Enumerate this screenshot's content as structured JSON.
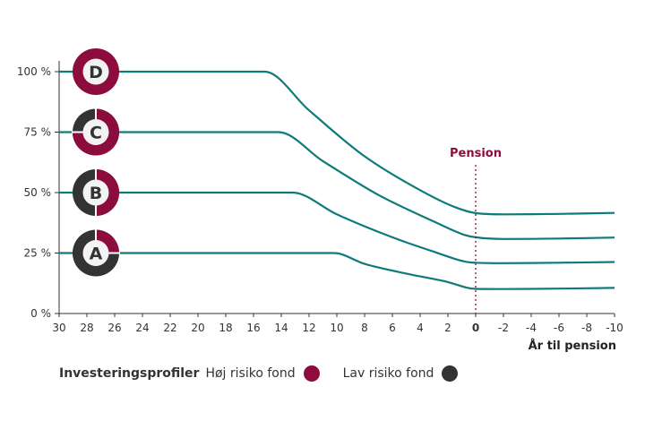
{
  "chart_data": {
    "type": "line",
    "xlabel": "År til pension",
    "ylabel": "",
    "x_ticks": [
      30,
      28,
      26,
      24,
      22,
      20,
      18,
      16,
      14,
      12,
      10,
      8,
      6,
      4,
      2,
      0,
      -2,
      -4,
      -6,
      -8,
      -10
    ],
    "x_tick_labels": [
      "30",
      "28",
      "26",
      "24",
      "22",
      "20",
      "18",
      "16",
      "14",
      "12",
      "10",
      "8",
      "6",
      "4",
      "2",
      "0",
      "-2",
      "-4",
      "-6",
      "-8",
      "-10"
    ],
    "xlim": [
      30,
      -10
    ],
    "y_ticks": [
      0,
      25,
      50,
      75,
      100
    ],
    "y_tick_labels": [
      "0 %",
      "25 %",
      "50 %",
      "75 %",
      "100 %"
    ],
    "ylim": [
      0,
      100
    ],
    "grid": false,
    "annotation": {
      "label": "Pension",
      "x": 0
    },
    "series": [
      {
        "profile": "D",
        "x": [
          30,
          15.2,
          12,
          8,
          4,
          1.5,
          0,
          -2,
          -6,
          -10
        ],
        "y": [
          100,
          100,
          84,
          65,
          51,
          44,
          41.5,
          41,
          41.2,
          41.6
        ]
      },
      {
        "profile": "C",
        "x": [
          30,
          14.2,
          11,
          7,
          3,
          0.8,
          0,
          -2,
          -6,
          -10
        ],
        "y": [
          75,
          75,
          63,
          49,
          38,
          32.5,
          31.5,
          30.8,
          31,
          31.4
        ]
      },
      {
        "profile": "B",
        "x": [
          30,
          13.2,
          10,
          6,
          3,
          0.8,
          0,
          -2,
          -6,
          -10
        ],
        "y": [
          50,
          50,
          41,
          31.5,
          25.5,
          21.5,
          21,
          20.8,
          21,
          21.3
        ]
      },
      {
        "profile": "A",
        "x": [
          30,
          10.2,
          8,
          5,
          2,
          0.5,
          0,
          -2,
          -6,
          -10
        ],
        "y": [
          25,
          25,
          20.5,
          16.5,
          13,
          10.5,
          10.2,
          10.1,
          10.3,
          10.6
        ]
      }
    ],
    "profiles": [
      {
        "letter": "D",
        "hoj_risiko_pct": 100
      },
      {
        "letter": "C",
        "hoj_risiko_pct": 75
      },
      {
        "letter": "B",
        "hoj_risiko_pct": 50
      },
      {
        "letter": "A",
        "hoj_risiko_pct": 25
      }
    ]
  },
  "legend": {
    "title": "Investeringsprofiler",
    "high_risk_label": "Høj risiko fond",
    "low_risk_label": "Lav risiko fond"
  },
  "colors": {
    "line": "#0e7a7a",
    "high_risk": "#8c0c3d",
    "low_risk": "#333333",
    "pension_marker": "#8c0c3d",
    "axis": "#333333",
    "badge_center": "#f3f3f3"
  }
}
